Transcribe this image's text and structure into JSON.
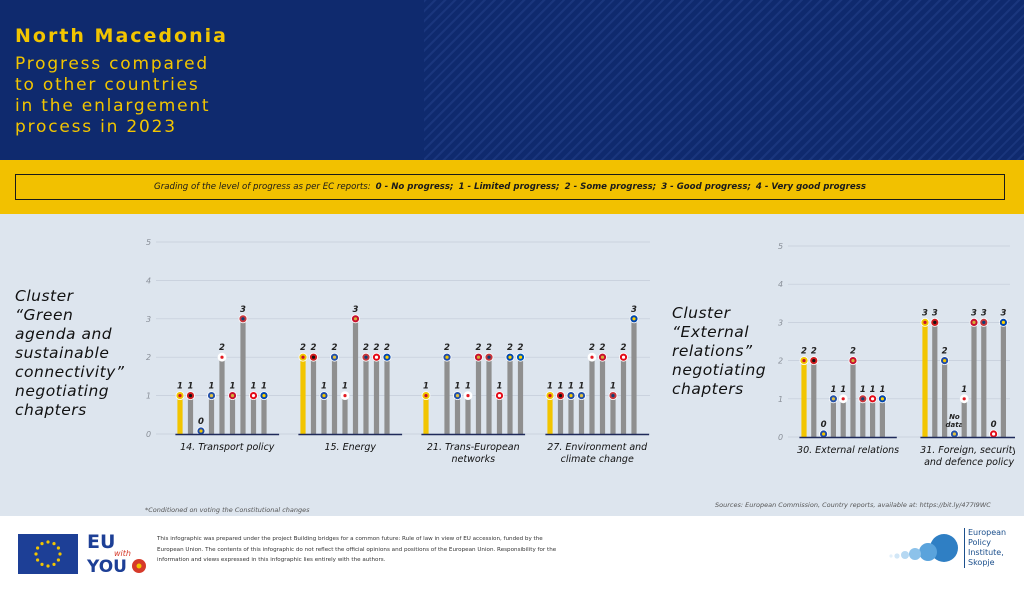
{
  "header": {
    "country": "North Macedonia",
    "subtitle": "Progress compared\nto other countries\nin the enlargement\nprocess in 2023"
  },
  "grading": {
    "intro": "Grading of the level of progress as per EC reports:",
    "levels": [
      "0 - No progress;",
      "1 - Limited progress;",
      "2 - Some progress;",
      "3 - Good progress;",
      "4 - Very good progress"
    ]
  },
  "clusters": {
    "green": "Cluster\n“Green\nagenda and\nsustainable\nconnectivity”\nnegotiating\nchapters",
    "external": "Cluster\n“External\nrelations”\nnegotiating\nchapters"
  },
  "colors": {
    "header_bg": "#0f2a6e",
    "accent_yellow": "#f2c100",
    "highlight_bar": "#f2c500",
    "other_bar": "#8f8f8f",
    "panel_bg": "#dde5ee"
  },
  "chart_data": [
    {
      "type": "bar",
      "ylim": [
        0,
        5
      ],
      "yticks": [
        "0",
        "1",
        "2",
        "3",
        "4",
        "5"
      ],
      "grid": true,
      "highlight_country": "North Macedonia",
      "flag_icons": [
        "north-macedonia-flag-icon",
        "albania-flag-icon",
        "bosnia-herzegovina-flag-icon",
        "kosovo-flag-icon",
        "georgia-flag-icon",
        "montenegro-flag-icon",
        "serbia-flag-icon",
        "turkey-flag-icon",
        "moldova-flag-icon",
        "ukraine-flag-icon"
      ],
      "categories": [
        {
          "label": "14. Transport policy",
          "values": [
            "1",
            "1",
            "0",
            "1",
            "2",
            "1",
            "3",
            "1",
            "1",
            null
          ]
        },
        {
          "label": "15. Energy",
          "values": [
            "2",
            "2",
            "1",
            "2",
            "1",
            "3",
            "2",
            "2",
            "2",
            null
          ]
        },
        {
          "label": "21. Trans-European\nnetworks",
          "values": [
            "1",
            null,
            "2",
            "1",
            "1",
            "2",
            "2",
            "1",
            "2",
            "2"
          ]
        },
        {
          "label": "27. Environment and\nclimate change",
          "values": [
            "1",
            "1",
            "1",
            "1",
            "2",
            "2",
            "1",
            "2",
            "3",
            null
          ]
        }
      ]
    },
    {
      "type": "bar",
      "ylim": [
        0,
        5
      ],
      "yticks": [
        "0",
        "1",
        "2",
        "3",
        "4",
        "5"
      ],
      "grid": true,
      "highlight_country": "North Macedonia",
      "categories": [
        {
          "label": "30. External relations",
          "values": [
            "2",
            "2",
            "0",
            "1",
            "1",
            "2",
            "1",
            "1",
            "1",
            null
          ]
        },
        {
          "label": "31. Foreign, security\nand defence policy",
          "values": [
            "3",
            "3",
            "2",
            "No\ndata",
            "1",
            "3",
            "3",
            "0",
            "3",
            null
          ]
        }
      ]
    }
  ],
  "footnote": "*Conditioned on voting the Constitutional changes",
  "sources": "Sources: European Commission, Country reports, available at: https://bit.ly/477I9WC",
  "footer": {
    "eu_with_you_line1": "EU",
    "eu_with_you_line2": "with",
    "eu_with_you_line3": "YOU",
    "disclaimer": "This infographic was prepared under the project Building bridges for a common future: Rule of law in view of EU accession, funded by the European Union. The contents of this infographic do not reflect the official opinions and positions of the European Union. Responsibility for the information and views expressed in this infographic lies entirely with the authors.",
    "epi_name": "European\nPolicy\nInstitute,\nSkopje"
  }
}
